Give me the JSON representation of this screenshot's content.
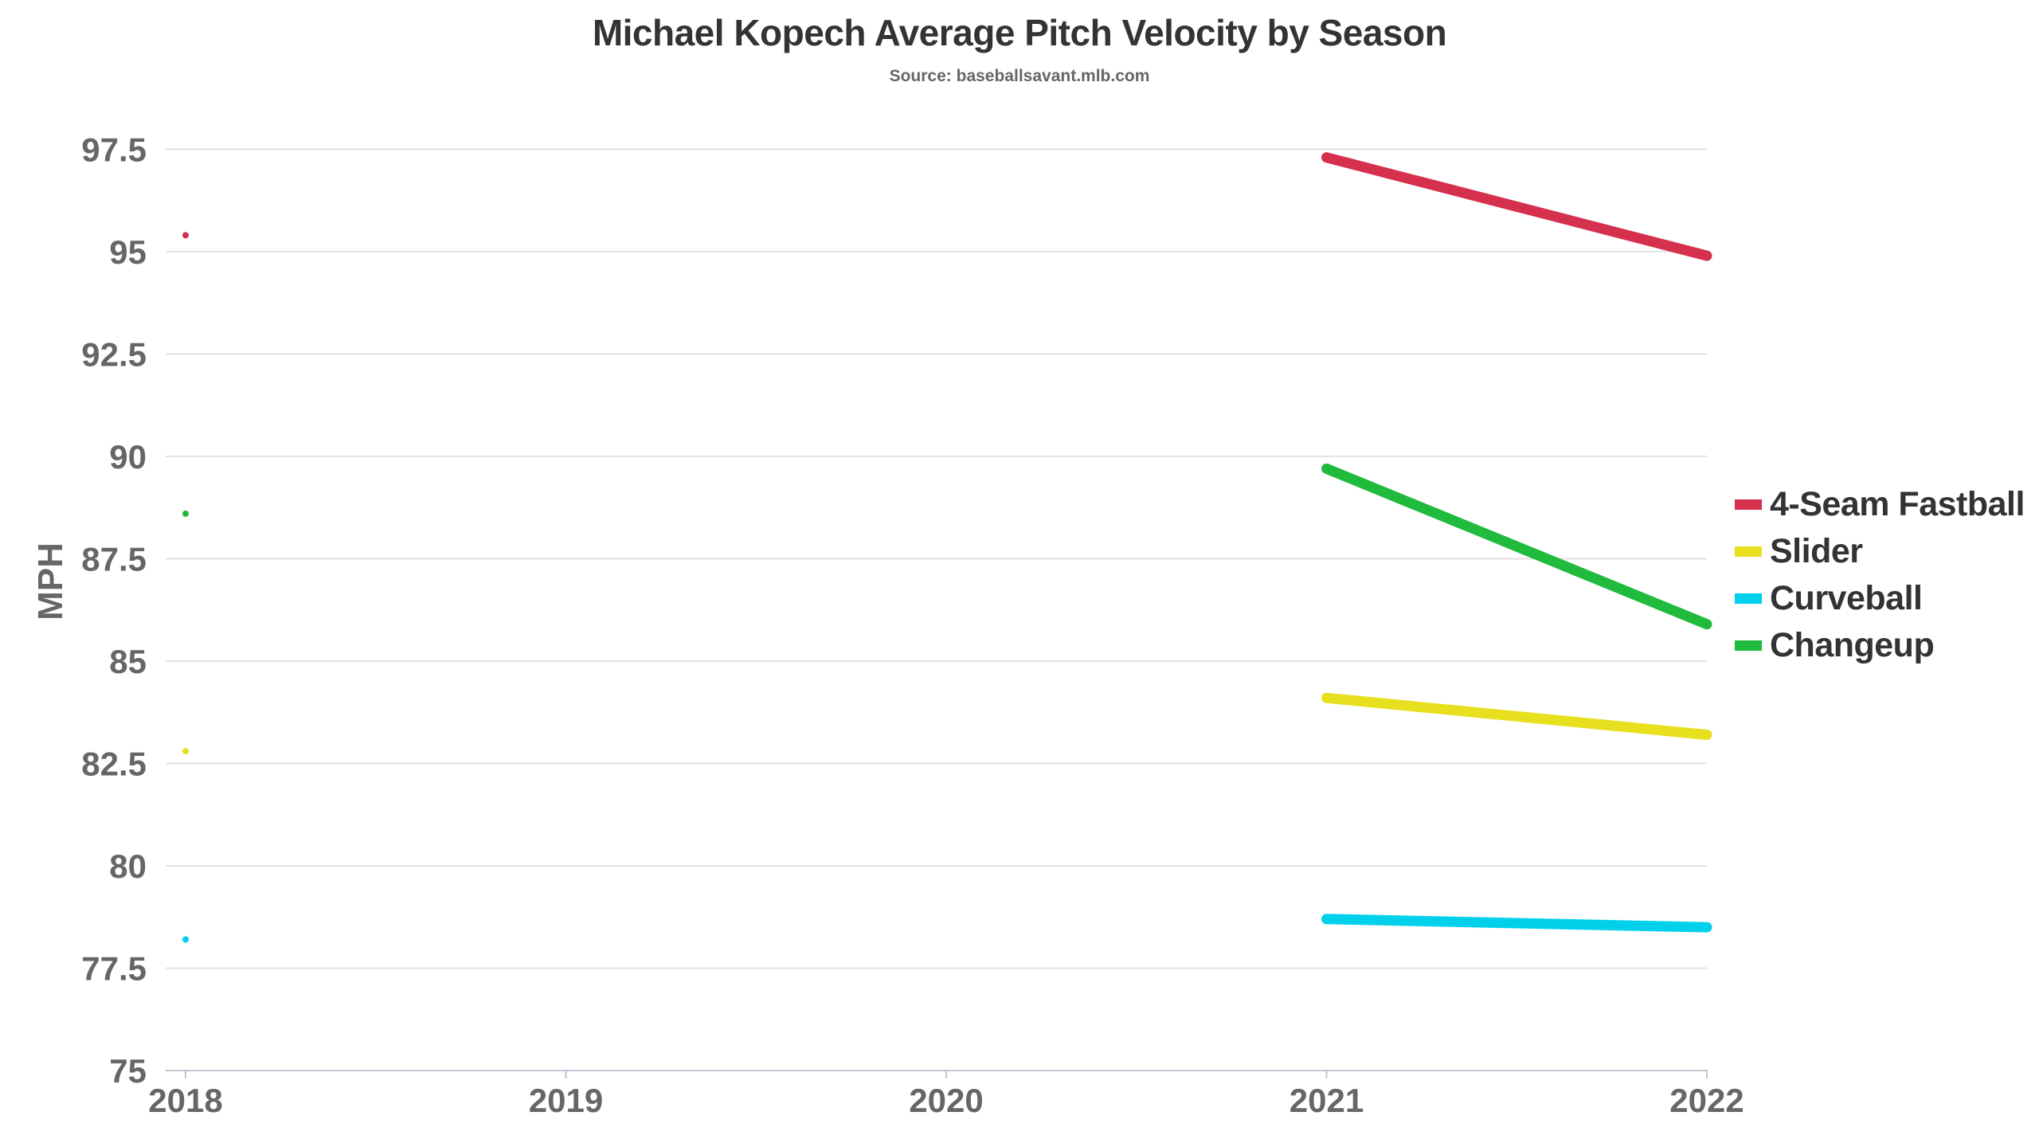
{
  "chart_data": {
    "type": "line",
    "title": "Michael Kopech Average Pitch Velocity by Season",
    "subtitle": "Source: baseballsavant.mlb.com",
    "xlabel": "",
    "ylabel": "MPH",
    "x": [
      2018,
      2019,
      2020,
      2021,
      2022
    ],
    "x_ticks": [
      "2018",
      "2019",
      "2020",
      "2021",
      "2022"
    ],
    "y_ticks": [
      "75",
      "77.5",
      "80",
      "82.5",
      "85",
      "87.5",
      "90",
      "92.5",
      "95",
      "97.5"
    ],
    "ylim": [
      75,
      98.5
    ],
    "grid": "horizontal",
    "legend_position": "right",
    "series": [
      {
        "name": "4-Seam Fastball",
        "color": "#d5304e",
        "values": [
          95.4,
          null,
          null,
          97.3,
          94.9
        ]
      },
      {
        "name": "Slider",
        "color": "#e8e01f",
        "values": [
          82.8,
          null,
          null,
          84.1,
          83.2
        ]
      },
      {
        "name": "Curveball",
        "color": "#00d0ea",
        "values": [
          78.2,
          null,
          null,
          78.7,
          78.5
        ]
      },
      {
        "name": "Changeup",
        "color": "#20bb3c",
        "values": [
          88.6,
          null,
          null,
          89.7,
          85.9
        ]
      }
    ]
  }
}
